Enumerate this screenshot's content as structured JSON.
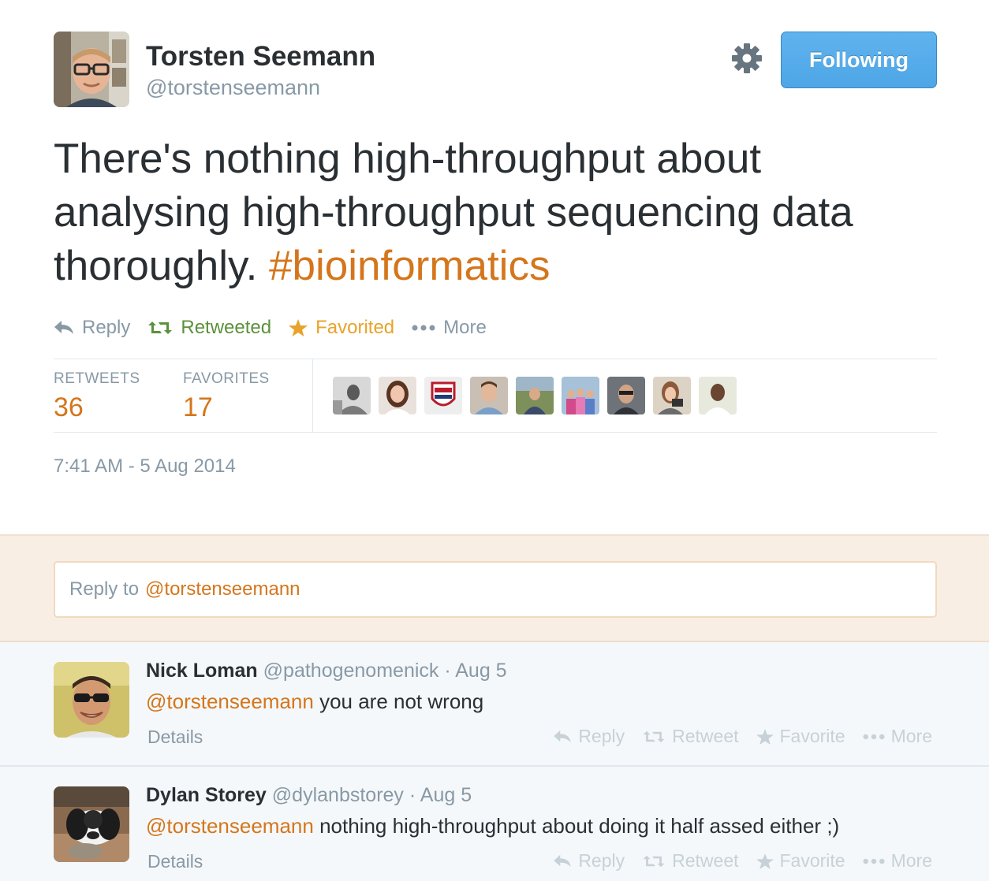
{
  "tweet": {
    "author_name": "Torsten Seemann",
    "author_handle": "@torstenseemann",
    "follow_label": "Following",
    "text": "There's nothing high-throughput about analysing high-throughput sequencing data thoroughly. ",
    "hashtag": "#bioinformatics",
    "actions": {
      "reply": "Reply",
      "retweet": "Retweeted",
      "favorite": "Favorited",
      "more": "More"
    },
    "stats": {
      "retweets_label": "RETWEETS",
      "retweets_value": "36",
      "favorites_label": "FAVORITES",
      "favorites_value": "17"
    },
    "timestamp": "7:41 AM - 5 Aug 2014"
  },
  "reply_box": {
    "prefix": "Reply to",
    "mention": "@torstenseemann"
  },
  "replies": [
    {
      "name": "Nick Loman",
      "handle": "@pathogenomenick",
      "time": "· Aug 5",
      "mention": "@torstenseemann",
      "text": " you are not wrong",
      "details": "Details",
      "actions": {
        "reply": "Reply",
        "retweet": "Retweet",
        "favorite": "Favorite",
        "more": "More"
      }
    },
    {
      "name": "Dylan Storey",
      "handle": "@dylanbstorey",
      "time": "· Aug 5",
      "mention": "@torstenseemann",
      "text": " nothing high-throughput about doing it half assed either ;)",
      "details": "Details",
      "actions": {
        "reply": "Reply",
        "retweet": "Retweet",
        "favorite": "Favorite",
        "more": "More"
      }
    }
  ],
  "colors": {
    "accent": "#d4761c",
    "follow_blue": "#55acee",
    "retweet_green": "#5c913b",
    "favorite_gold": "#e8a32a",
    "muted": "#8899a6"
  },
  "icons": [
    "gear-icon",
    "reply-icon",
    "retweet-icon",
    "star-icon",
    "more-dots-icon"
  ]
}
